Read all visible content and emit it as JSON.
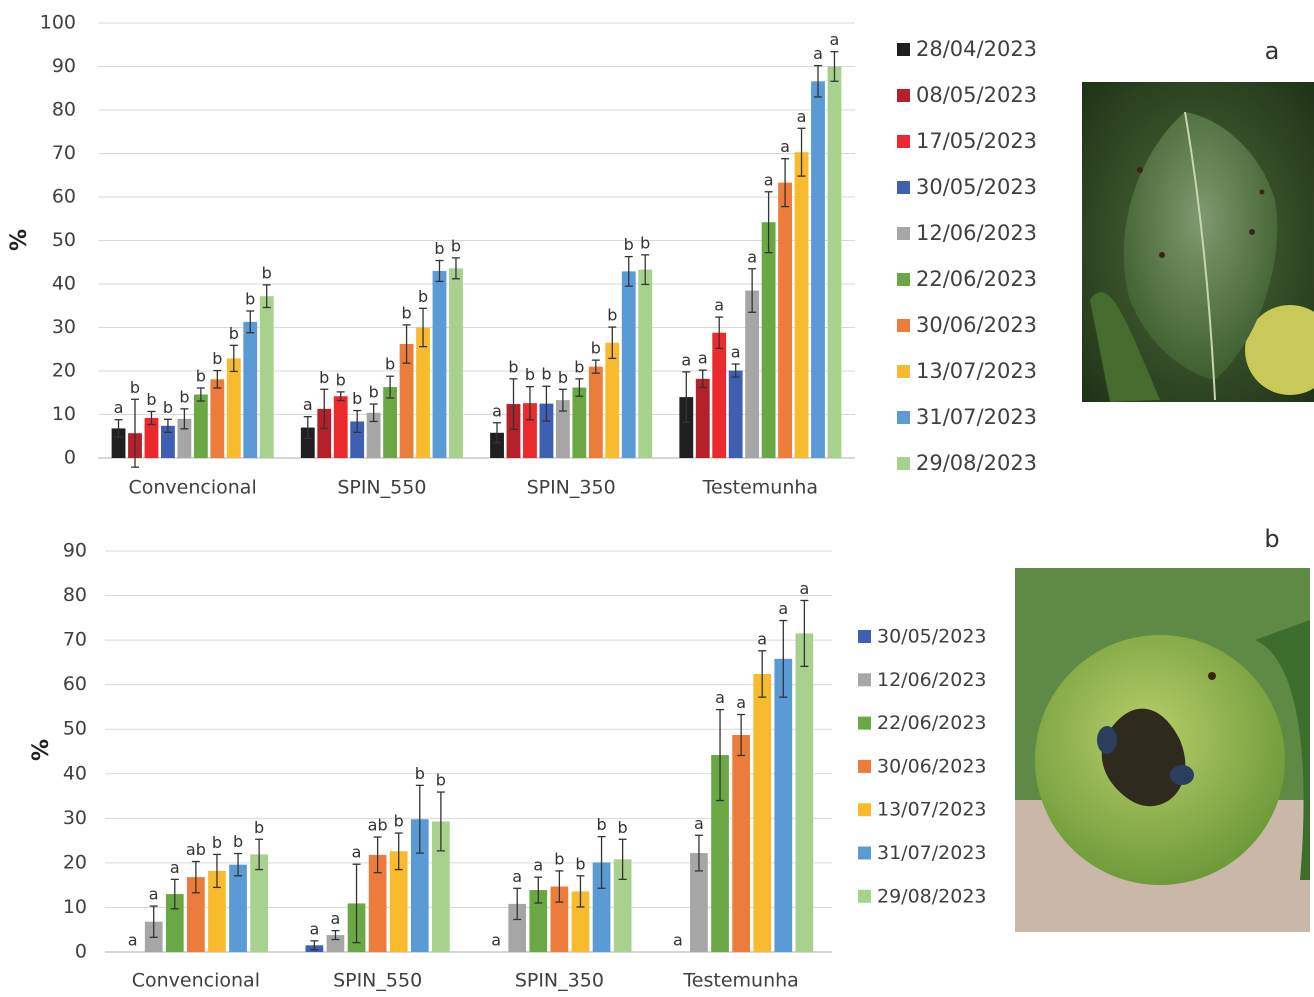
{
  "chart_data": [
    {
      "type": "bar",
      "y_label": "%",
      "panel_label": "a",
      "categories": [
        "Convencional",
        "SPIN_550",
        "SPIN_350",
        "Testemunha"
      ],
      "ylim": [
        0,
        100
      ],
      "yticks": [
        0,
        10,
        20,
        30,
        40,
        50,
        60,
        70,
        80,
        90,
        100
      ],
      "grid": true,
      "series": [
        {
          "name": "28/04/2023",
          "color": "#1f1f1f",
          "values": [
            6.8,
            7,
            5.8,
            14
          ],
          "errors": [
            2,
            2.5,
            2.3,
            5.8
          ],
          "letters": [
            "a",
            "a",
            "a",
            "a"
          ]
        },
        {
          "name": "08/05/2023",
          "color": "#b5202a",
          "values": [
            5.7,
            11.3,
            12.4,
            18.2
          ],
          "errors": [
            7.8,
            4.5,
            5.8,
            2
          ],
          "letters": [
            "b",
            "b",
            "b",
            "a"
          ]
        },
        {
          "name": "17/05/2023",
          "color": "#ea2a2c",
          "values": [
            9.2,
            14.2,
            12.6,
            28.8
          ],
          "errors": [
            1.5,
            1,
            3.8,
            3.6
          ],
          "letters": [
            "b",
            "b",
            "b",
            "a"
          ]
        },
        {
          "name": "30/05/2023",
          "color": "#3f5fb3",
          "values": [
            7.4,
            8.4,
            12.5,
            20.1
          ],
          "errors": [
            1.5,
            2.5,
            4,
            1.5
          ],
          "letters": [
            "b",
            "b",
            "b",
            "a"
          ]
        },
        {
          "name": "12/06/2023",
          "color": "#a6a6a6",
          "values": [
            9,
            10.4,
            13.3,
            38.5
          ],
          "errors": [
            2.3,
            2,
            2.5,
            5
          ],
          "letters": [
            "b",
            "b",
            "b",
            "a"
          ]
        },
        {
          "name": "22/06/2023",
          "color": "#6aa745",
          "values": [
            14.6,
            16.3,
            16.2,
            54.2
          ],
          "errors": [
            1.5,
            2.5,
            2,
            7
          ],
          "letters": [
            "b",
            "b",
            "b",
            "a"
          ]
        },
        {
          "name": "30/06/2023",
          "color": "#ec7c3c",
          "values": [
            18.1,
            26.2,
            21,
            63.3
          ],
          "errors": [
            2,
            4.4,
            1.5,
            5.5
          ],
          "letters": [
            "b",
            "b",
            "b",
            "a"
          ]
        },
        {
          "name": "13/07/2023",
          "color": "#f8bb2e",
          "values": [
            22.9,
            30,
            26.5,
            70.3
          ],
          "errors": [
            3,
            4.4,
            3.6,
            5.5
          ],
          "letters": [
            "b",
            "b",
            "b",
            "a"
          ]
        },
        {
          "name": "31/07/2023",
          "color": "#5b9bd5",
          "values": [
            31.3,
            43,
            42.9,
            86.6
          ],
          "errors": [
            2.5,
            2.4,
            3.4,
            3.6
          ],
          "letters": [
            "b",
            "b",
            "b",
            "a"
          ]
        },
        {
          "name": "29/08/2023",
          "color": "#a9d18e",
          "values": [
            37.2,
            43.6,
            43.3,
            90
          ],
          "errors": [
            2.6,
            2.4,
            3.4,
            3.4
          ],
          "letters": [
            "b",
            "b",
            "b",
            "a"
          ]
        }
      ]
    },
    {
      "type": "bar",
      "y_label": "%",
      "panel_label": "b",
      "categories": [
        "Convencional",
        "SPIN_550",
        "SPIN_350",
        "Testemunha"
      ],
      "ylim": [
        0,
        90
      ],
      "yticks": [
        0,
        10,
        20,
        30,
        40,
        50,
        60,
        70,
        80,
        90
      ],
      "grid": true,
      "series": [
        {
          "name": "30/05/2023",
          "color": "#3f5fb3",
          "values": [
            0,
            1.5,
            0,
            0
          ],
          "errors": [
            0,
            1,
            0,
            0
          ],
          "letters": [
            "a",
            "a",
            "a",
            "a"
          ]
        },
        {
          "name": "12/06/2023",
          "color": "#a6a6a6",
          "values": [
            6.8,
            3.8,
            10.8,
            22.2
          ],
          "errors": [
            3.5,
            1,
            3.5,
            4
          ],
          "letters": [
            "a",
            "a",
            "a",
            "a"
          ]
        },
        {
          "name": "22/06/2023",
          "color": "#6aa745",
          "values": [
            13,
            10.9,
            13.9,
            44.2
          ],
          "errors": [
            3.3,
            8.8,
            2.9,
            10.2
          ],
          "letters": [
            "a",
            "a",
            "a",
            "a"
          ]
        },
        {
          "name": "30/06/2023",
          "color": "#ec7c3c",
          "values": [
            16.8,
            21.8,
            14.7,
            48.7
          ],
          "errors": [
            3.5,
            4,
            3.5,
            4.6
          ],
          "letters": [
            "ab",
            "ab",
            "b",
            "a"
          ]
        },
        {
          "name": "13/07/2023",
          "color": "#f8bb2e",
          "values": [
            18.2,
            22.6,
            13.6,
            62.4
          ],
          "errors": [
            3.7,
            4.1,
            3.5,
            5.2
          ],
          "letters": [
            "b",
            "b",
            "b",
            "a"
          ]
        },
        {
          "name": "31/07/2023",
          "color": "#5b9bd5",
          "values": [
            19.6,
            29.8,
            20.1,
            65.8
          ],
          "errors": [
            2.5,
            7.6,
            5.8,
            8.6
          ],
          "letters": [
            "b",
            "b",
            "b",
            "a"
          ]
        },
        {
          "name": "29/08/2023",
          "color": "#a9d18e",
          "values": [
            21.9,
            29.3,
            20.8,
            71.5
          ],
          "errors": [
            3.4,
            6.6,
            4.5,
            7.4
          ],
          "letters": [
            "b",
            "b",
            "b",
            "a"
          ]
        }
      ]
    }
  ]
}
